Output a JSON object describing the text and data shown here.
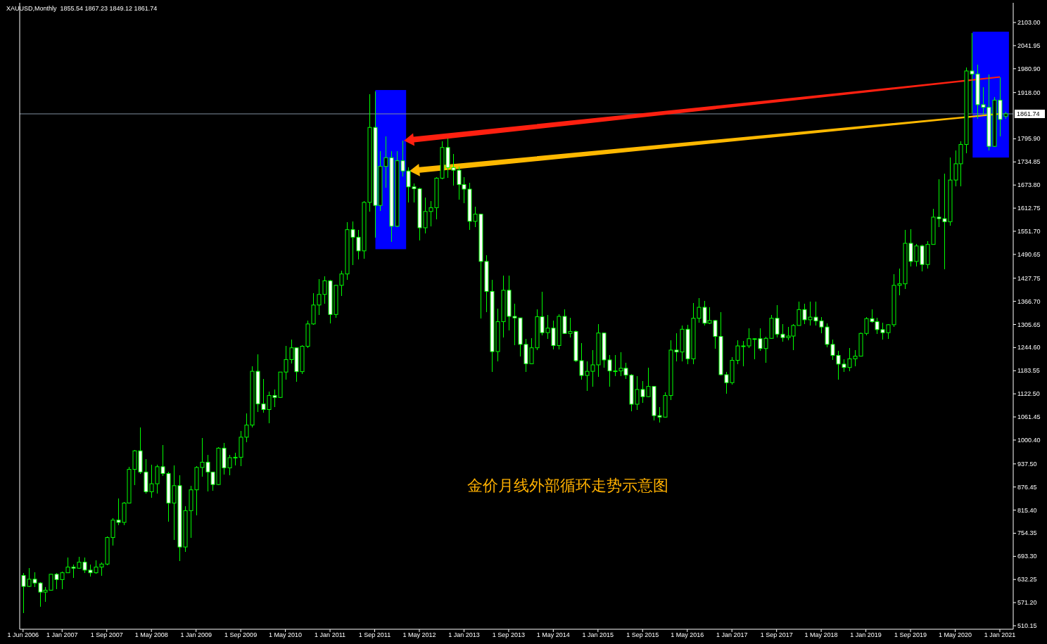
{
  "chart_data": {
    "type": "candlestick",
    "title": "XAUUSD,Monthly  1855.54 1867.23 1849.12 1861.74",
    "categories": [
      "1 Jun 2006",
      null,
      null,
      null,
      null,
      null,
      null,
      "1 Jan 2007",
      null,
      null,
      null,
      null,
      null,
      null,
      null,
      "1 Sep 2007",
      null,
      null,
      null,
      null,
      null,
      null,
      null,
      "1 May 2008",
      null,
      null,
      null,
      null,
      null,
      null,
      null,
      "1 Jan 2009",
      null,
      null,
      null,
      null,
      null,
      null,
      null,
      "1 Sep 2009",
      null,
      null,
      null,
      null,
      null,
      null,
      null,
      "1 May 2010",
      null,
      null,
      null,
      null,
      null,
      null,
      null,
      "1 Jan 2011",
      null,
      null,
      null,
      null,
      null,
      null,
      null,
      "1 Sep 2011",
      null,
      null,
      null,
      null,
      null,
      null,
      null,
      "1 May 2012",
      null,
      null,
      null,
      null,
      null,
      null,
      null,
      "1 Jan 2013",
      null,
      null,
      null,
      null,
      null,
      null,
      null,
      "1 Sep 2013",
      null,
      null,
      null,
      null,
      null,
      null,
      null,
      "1 May 2014",
      null,
      null,
      null,
      null,
      null,
      null,
      null,
      "1 Jan 2015",
      null,
      null,
      null,
      null,
      null,
      null,
      null,
      "1 Sep 2015",
      null,
      null,
      null,
      null,
      null,
      null,
      null,
      "1 May 2016",
      null,
      null,
      null,
      null,
      null,
      null,
      null,
      "1 Jan 2017",
      null,
      null,
      null,
      null,
      null,
      null,
      null,
      "1 Sep 2017",
      null,
      null,
      null,
      null,
      null,
      null,
      null,
      "1 May 2018",
      null,
      null,
      null,
      null,
      null,
      null,
      null,
      "1 Jan 2019",
      null,
      null,
      null,
      null,
      null,
      null,
      null,
      "1 Sep 2019",
      null,
      null,
      null,
      null,
      null,
      null,
      null,
      "1 May 2020",
      null,
      null,
      null,
      null,
      null,
      null,
      null,
      "1 Jan 2021",
      null
    ],
    "ohlc": [
      [
        643,
        650,
        543,
        614
      ],
      [
        614,
        663,
        613,
        633
      ],
      [
        633,
        652,
        612,
        623
      ],
      [
        623,
        625,
        560,
        599
      ],
      [
        599,
        612,
        573,
        604
      ],
      [
        604,
        648,
        603,
        646
      ],
      [
        646,
        650,
        606,
        632
      ],
      [
        632,
        654,
        606,
        650
      ],
      [
        650,
        690,
        649,
        665
      ],
      [
        665,
        672,
        637,
        662
      ],
      [
        662,
        693,
        660,
        678
      ],
      [
        678,
        691,
        650,
        657
      ],
      [
        657,
        672,
        641,
        650
      ],
      [
        650,
        683,
        648,
        665
      ],
      [
        665,
        677,
        642,
        673
      ],
      [
        673,
        745,
        670,
        743
      ],
      [
        743,
        794,
        721,
        789
      ],
      [
        789,
        846,
        775,
        783
      ],
      [
        783,
        836,
        776,
        834
      ],
      [
        834,
        930,
        834,
        923
      ],
      [
        923,
        975,
        881,
        972
      ],
      [
        972,
        1033,
        912,
        916
      ],
      [
        916,
        950,
        859,
        864
      ],
      [
        864,
        935,
        848,
        885
      ],
      [
        885,
        935,
        860,
        930
      ],
      [
        930,
        988,
        906,
        912
      ],
      [
        912,
        917,
        785,
        834
      ],
      [
        834,
        934,
        736,
        880
      ],
      [
        880,
        907,
        681,
        718
      ],
      [
        718,
        825,
        705,
        814
      ],
      [
        814,
        880,
        743,
        869
      ],
      [
        869,
        931,
        801,
        928
      ],
      [
        928,
        1006,
        903,
        942
      ],
      [
        942,
        962,
        865,
        916
      ],
      [
        916,
        917,
        867,
        883
      ],
      [
        883,
        981,
        882,
        979
      ],
      [
        979,
        992,
        910,
        927
      ],
      [
        927,
        962,
        908,
        954
      ],
      [
        954,
        966,
        933,
        955
      ],
      [
        955,
        1025,
        931,
        1008
      ],
      [
        1008,
        1070,
        995,
        1040
      ],
      [
        1040,
        1195,
        1033,
        1182
      ],
      [
        1182,
        1227,
        1075,
        1096
      ],
      [
        1096,
        1162,
        1073,
        1081
      ],
      [
        1081,
        1129,
        1044,
        1118
      ],
      [
        1118,
        1134,
        1087,
        1113
      ],
      [
        1113,
        1180,
        1111,
        1180
      ],
      [
        1180,
        1249,
        1160,
        1213
      ],
      [
        1213,
        1266,
        1202,
        1244
      ],
      [
        1244,
        1245,
        1155,
        1181
      ],
      [
        1181,
        1251,
        1175,
        1248
      ],
      [
        1248,
        1315,
        1243,
        1307
      ],
      [
        1307,
        1388,
        1305,
        1357
      ],
      [
        1357,
        1425,
        1330,
        1385
      ],
      [
        1385,
        1432,
        1360,
        1421
      ],
      [
        1421,
        1424,
        1309,
        1332
      ],
      [
        1332,
        1411,
        1324,
        1409
      ],
      [
        1409,
        1448,
        1381,
        1439
      ],
      [
        1439,
        1575,
        1423,
        1556
      ],
      [
        1556,
        1577,
        1462,
        1536
      ],
      [
        1536,
        1556,
        1478,
        1500
      ],
      [
        1500,
        1632,
        1480,
        1628
      ],
      [
        1628,
        1913,
        1604,
        1826
      ],
      [
        1826,
        1921,
        1535,
        1620
      ],
      [
        1620,
        1764,
        1605,
        1723
      ],
      [
        1723,
        1803,
        1667,
        1746
      ],
      [
        1746,
        1763,
        1523,
        1565
      ],
      [
        1565,
        1764,
        1563,
        1738
      ],
      [
        1738,
        1791,
        1696,
        1711
      ],
      [
        1711,
        1720,
        1627,
        1669
      ],
      [
        1669,
        1677,
        1627,
        1664
      ],
      [
        1664,
        1666,
        1527,
        1561
      ],
      [
        1561,
        1640,
        1546,
        1604
      ],
      [
        1604,
        1631,
        1564,
        1614
      ],
      [
        1614,
        1694,
        1583,
        1692
      ],
      [
        1692,
        1789,
        1689,
        1773
      ],
      [
        1773,
        1796,
        1692,
        1720
      ],
      [
        1720,
        1755,
        1672,
        1713
      ],
      [
        1713,
        1723,
        1635,
        1675
      ],
      [
        1675,
        1694,
        1626,
        1663
      ],
      [
        1663,
        1679,
        1555,
        1578
      ],
      [
        1578,
        1617,
        1562,
        1597
      ],
      [
        1597,
        1598,
        1321,
        1472
      ],
      [
        1472,
        1488,
        1338,
        1393
      ],
      [
        1393,
        1424,
        1180,
        1234
      ],
      [
        1234,
        1348,
        1208,
        1313
      ],
      [
        1313,
        1434,
        1271,
        1396
      ],
      [
        1396,
        1434,
        1290,
        1327
      ],
      [
        1327,
        1361,
        1251,
        1323
      ],
      [
        1323,
        1324,
        1221,
        1253
      ],
      [
        1253,
        1267,
        1181,
        1202
      ],
      [
        1202,
        1270,
        1201,
        1244
      ],
      [
        1244,
        1345,
        1238,
        1326
      ],
      [
        1326,
        1392,
        1277,
        1284
      ],
      [
        1284,
        1331,
        1268,
        1296
      ],
      [
        1296,
        1315,
        1240,
        1250
      ],
      [
        1250,
        1332,
        1240,
        1327
      ],
      [
        1327,
        1346,
        1280,
        1282
      ],
      [
        1282,
        1323,
        1272,
        1287
      ],
      [
        1287,
        1290,
        1206,
        1210
      ],
      [
        1210,
        1256,
        1160,
        1171
      ],
      [
        1171,
        1208,
        1131,
        1182
      ],
      [
        1182,
        1238,
        1142,
        1199
      ],
      [
        1199,
        1307,
        1167,
        1283
      ],
      [
        1283,
        1284,
        1191,
        1212
      ],
      [
        1212,
        1224,
        1142,
        1183
      ],
      [
        1183,
        1224,
        1170,
        1183
      ],
      [
        1183,
        1232,
        1170,
        1190
      ],
      [
        1190,
        1205,
        1162,
        1172
      ],
      [
        1172,
        1175,
        1077,
        1095
      ],
      [
        1095,
        1170,
        1080,
        1134
      ],
      [
        1134,
        1157,
        1098,
        1115
      ],
      [
        1115,
        1191,
        1113,
        1142
      ],
      [
        1142,
        1143,
        1052,
        1065
      ],
      [
        1065,
        1088,
        1046,
        1061
      ],
      [
        1061,
        1127,
        1060,
        1118
      ],
      [
        1118,
        1263,
        1107,
        1238
      ],
      [
        1238,
        1283,
        1208,
        1233
      ],
      [
        1233,
        1303,
        1208,
        1293
      ],
      [
        1293,
        1304,
        1200,
        1215
      ],
      [
        1215,
        1362,
        1200,
        1322
      ],
      [
        1322,
        1375,
        1311,
        1351
      ],
      [
        1351,
        1367,
        1302,
        1309
      ],
      [
        1309,
        1352,
        1306,
        1316
      ],
      [
        1316,
        1318,
        1241,
        1274
      ],
      [
        1274,
        1338,
        1171,
        1173
      ],
      [
        1173,
        1180,
        1123,
        1152
      ],
      [
        1152,
        1220,
        1147,
        1211
      ],
      [
        1211,
        1264,
        1201,
        1249
      ],
      [
        1249,
        1262,
        1195,
        1249
      ],
      [
        1249,
        1295,
        1244,
        1268
      ],
      [
        1268,
        1270,
        1214,
        1268
      ],
      [
        1268,
        1296,
        1236,
        1242
      ],
      [
        1242,
        1274,
        1205,
        1269
      ],
      [
        1269,
        1331,
        1267,
        1322
      ],
      [
        1322,
        1357,
        1271,
        1280
      ],
      [
        1280,
        1306,
        1260,
        1271
      ],
      [
        1271,
        1299,
        1264,
        1275
      ],
      [
        1275,
        1307,
        1237,
        1303
      ],
      [
        1303,
        1366,
        1302,
        1345
      ],
      [
        1345,
        1361,
        1307,
        1318
      ],
      [
        1318,
        1366,
        1303,
        1325
      ],
      [
        1325,
        1366,
        1302,
        1315
      ],
      [
        1315,
        1326,
        1282,
        1299
      ],
      [
        1299,
        1309,
        1245,
        1253
      ],
      [
        1253,
        1266,
        1211,
        1224
      ],
      [
        1224,
        1236,
        1160,
        1201
      ],
      [
        1201,
        1214,
        1180,
        1192
      ],
      [
        1192,
        1243,
        1182,
        1215
      ],
      [
        1215,
        1237,
        1196,
        1222
      ],
      [
        1222,
        1285,
        1221,
        1282
      ],
      [
        1282,
        1326,
        1276,
        1321
      ],
      [
        1321,
        1346,
        1310,
        1313
      ],
      [
        1313,
        1324,
        1281,
        1292
      ],
      [
        1292,
        1310,
        1266,
        1284
      ],
      [
        1284,
        1306,
        1267,
        1305
      ],
      [
        1305,
        1439,
        1300,
        1409
      ],
      [
        1409,
        1453,
        1382,
        1413
      ],
      [
        1413,
        1555,
        1400,
        1520
      ],
      [
        1520,
        1557,
        1459,
        1472
      ],
      [
        1472,
        1518,
        1458,
        1513
      ],
      [
        1513,
        1516,
        1445,
        1464
      ],
      [
        1464,
        1525,
        1454,
        1517
      ],
      [
        1517,
        1611,
        1516,
        1589
      ],
      [
        1589,
        1689,
        1562,
        1585
      ],
      [
        1585,
        1704,
        1451,
        1577
      ],
      [
        1577,
        1747,
        1567,
        1687
      ],
      [
        1687,
        1765,
        1670,
        1730
      ],
      [
        1730,
        1789,
        1671,
        1781
      ],
      [
        1781,
        1984,
        1757,
        1975
      ],
      [
        1975,
        2075,
        1863,
        1967
      ],
      [
        1967,
        1992,
        1848,
        1886
      ],
      [
        1886,
        1933,
        1860,
        1879
      ],
      [
        1879,
        1966,
        1765,
        1776
      ],
      [
        1776,
        1906,
        1775,
        1898
      ],
      [
        1898,
        1959,
        1802,
        1847
      ],
      [
        1855.54,
        1867.23,
        1849.12,
        1861.74
      ]
    ],
    "color": "#00ff00",
    "ylim": [
      500.87,
      2155.0
    ],
    "yticks": [
      {
        "value": 510.15,
        "label": "510.15"
      },
      {
        "value": 571.2,
        "label": "571.20"
      },
      {
        "value": 632.25,
        "label": "632.25"
      },
      {
        "value": 693.3,
        "label": "693.30"
      },
      {
        "value": 754.35,
        "label": "754.35"
      },
      {
        "value": 815.4,
        "label": "815.40"
      },
      {
        "value": 876.45,
        "label": "876.45"
      },
      {
        "value": 937.5,
        "label": "937.50"
      },
      {
        "value": 1000.4,
        "label": "1000.40"
      },
      {
        "value": 1061.45,
        "label": "1061.45"
      },
      {
        "value": 1122.5,
        "label": "1122.50"
      },
      {
        "value": 1183.55,
        "label": "1183.55"
      },
      {
        "value": 1244.6,
        "label": "1244.60"
      },
      {
        "value": 1305.65,
        "label": "1305.65"
      },
      {
        "value": 1366.7,
        "label": "1366.70"
      },
      {
        "value": 1427.75,
        "label": "1427.75"
      },
      {
        "value": 1490.65,
        "label": "1490.65"
      },
      {
        "value": 1551.7,
        "label": "1551.70"
      },
      {
        "value": 1612.75,
        "label": "1612.75"
      },
      {
        "value": 1673.8,
        "label": "1673.80"
      },
      {
        "value": 1734.85,
        "label": "1734.85"
      },
      {
        "value": 1795.9,
        "label": "1795.90"
      },
      {
        "value": 1918.0,
        "label": "1918.00"
      },
      {
        "value": 1980.9,
        "label": "1980.90"
      },
      {
        "value": 2041.95,
        "label": "2041.95"
      },
      {
        "value": 2103.0,
        "label": "2103.00"
      }
    ],
    "ref_lines": [
      {
        "axis": "y",
        "value": 1861.74,
        "label": "1861.74",
        "color": "#8090a0"
      }
    ],
    "annotations": [
      "金价月线外部循环走势示意图"
    ]
  }
}
